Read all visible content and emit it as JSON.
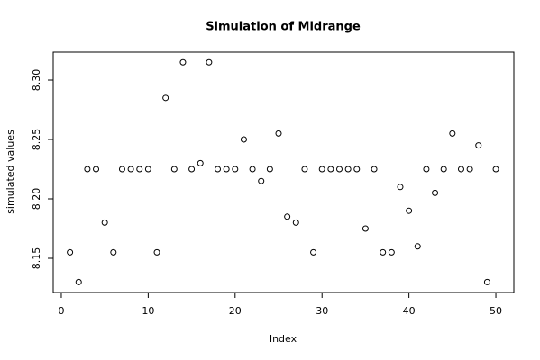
{
  "chart_data": {
    "type": "scatter",
    "title": "Simulation of Midrange",
    "x_label": "Index",
    "y_label": "simulated values",
    "x": [
      1,
      2,
      3,
      4,
      5,
      6,
      7,
      8,
      9,
      10,
      11,
      12,
      13,
      14,
      15,
      16,
      17,
      18,
      19,
      20,
      21,
      22,
      23,
      24,
      25,
      26,
      27,
      28,
      29,
      30,
      31,
      32,
      33,
      34,
      35,
      36,
      37,
      38,
      39,
      40,
      41,
      42,
      43,
      44,
      45,
      46,
      47,
      48,
      49,
      50
    ],
    "values": [
      8.155,
      8.13,
      8.225,
      8.225,
      8.18,
      8.155,
      8.225,
      8.225,
      8.225,
      8.225,
      8.155,
      8.285,
      8.225,
      8.315,
      8.225,
      8.23,
      8.315,
      8.225,
      8.225,
      8.225,
      8.25,
      8.225,
      8.215,
      8.225,
      8.255,
      8.185,
      8.18,
      8.225,
      8.155,
      8.225,
      8.225,
      8.225,
      8.225,
      8.225,
      8.175,
      8.225,
      8.155,
      8.155,
      8.21,
      8.19,
      8.16,
      8.225,
      8.205,
      8.225,
      8.255,
      8.225,
      8.225,
      8.245,
      8.13,
      8.225
    ],
    "color": "#000000",
    "xlim": [
      -0.93,
      52.07
    ],
    "ylim": [
      8.1212,
      8.3235
    ],
    "xticks": [
      0,
      10,
      20,
      30,
      40,
      50
    ],
    "yticks": [
      8.15,
      {
        "value": 8.2,
        "label": "8.20"
      },
      8.25,
      {
        "value": 8.3,
        "label": "8.30"
      }
    ]
  }
}
